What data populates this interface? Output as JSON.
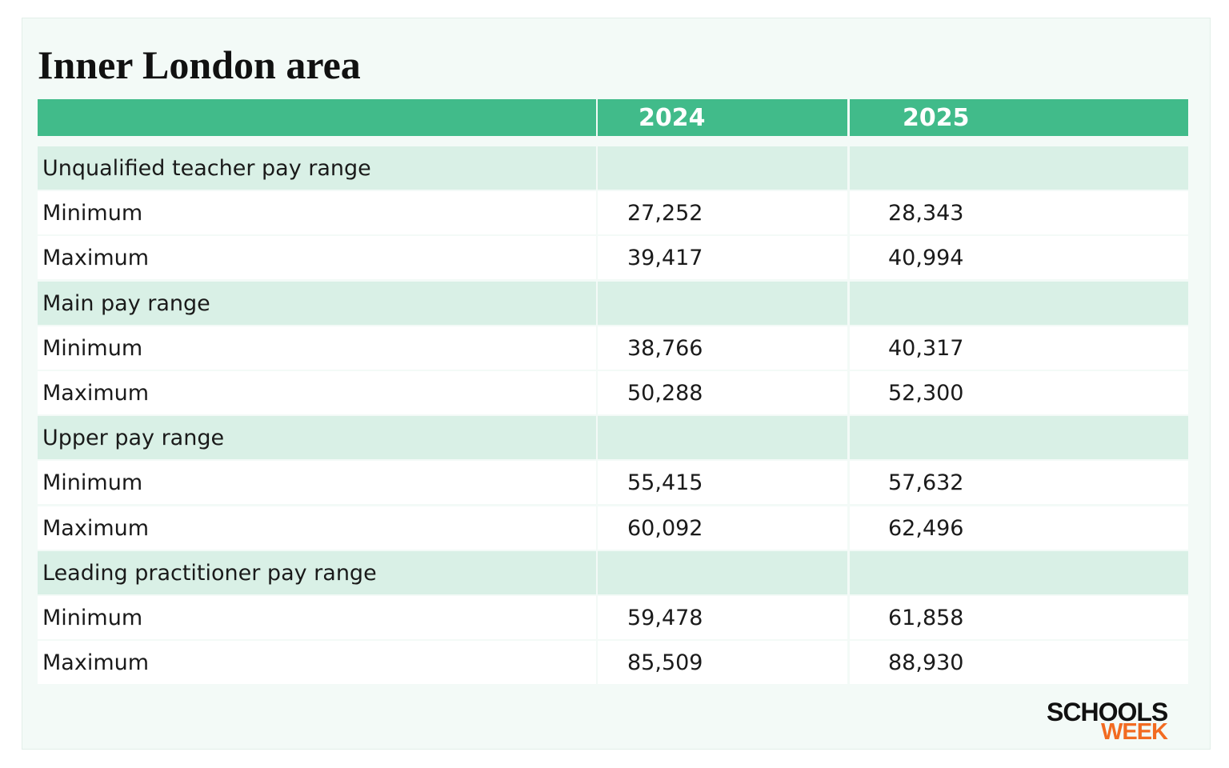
{
  "title": "Inner London area",
  "table": {
    "header": [
      "2024",
      "2025"
    ],
    "rows": [
      {
        "section": "Unqualified teacher pay range"
      },
      {
        "label": "Minimum",
        "values": [
          "27,252",
          "28,343"
        ]
      },
      {
        "label": "Maximum",
        "values": [
          "39,417",
          "40,994"
        ]
      },
      {
        "section": "Main pay range"
      },
      {
        "label": "Minimum",
        "values": [
          "38,766",
          "40,317"
        ]
      },
      {
        "label": "Maximum",
        "values": [
          "50,288",
          "52,300"
        ]
      },
      {
        "section": "Upper pay range"
      },
      {
        "label": "Minimum",
        "values": [
          "55,415",
          "57,632"
        ]
      },
      {
        "label": "Maximum",
        "values": [
          "60,092",
          "62,496"
        ]
      },
      {
        "section": "Leading practitioner pay range"
      },
      {
        "label": "Minimum",
        "values": [
          "59,478",
          "61,858"
        ]
      },
      {
        "label": "Maximum",
        "values": [
          "85,509",
          "88,930"
        ]
      }
    ]
  },
  "logo": {
    "line1": "SCHOOLS",
    "line2": "WEEK"
  }
}
